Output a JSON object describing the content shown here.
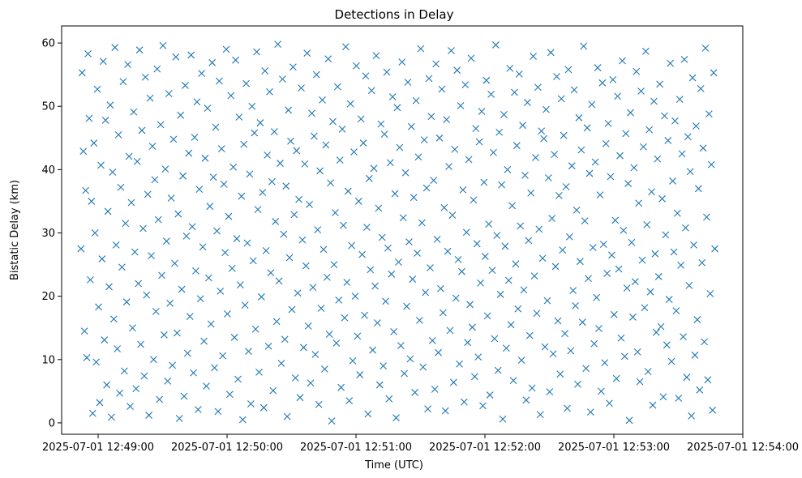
{
  "chart_data": {
    "type": "scatter",
    "title": "Detections in Delay",
    "xlabel": "Time (UTC)",
    "ylabel": "Bistatic Delay (km)",
    "marker": "x",
    "color": "#1f77b4",
    "grid": false,
    "legend": "none",
    "xlim": [
      "2025-07-01 12:48:43",
      "2025-07-01 12:54:00"
    ],
    "ylim": [
      -1.8,
      62.7
    ],
    "x_ticks": [
      "2025-07-01 12:49:00",
      "2025-07-01 12:50:00",
      "2025-07-01 12:51:00",
      "2025-07-01 12:52:00",
      "2025-07-01 12:53:00",
      "2025-07-01 12:54:00"
    ],
    "y_ticks": [
      0,
      10,
      20,
      30,
      40,
      50,
      60
    ],
    "x_start": "2025-07-01 12:48:52",
    "x_end": "2025-07-01 12:53:47",
    "y_values": [
      27.5,
      55.3,
      42.9,
      14.5,
      36.7,
      10.3,
      58.3,
      48.1,
      22.6,
      35.0,
      1.5,
      44.2,
      30.0,
      9.6,
      52.7,
      18.3,
      3.2,
      40.7,
      25.9,
      57.1,
      13.1,
      47.8,
      6.0,
      33.4,
      21.5,
      50.2,
      0.9,
      39.6,
      16.4,
      59.3,
      28.1,
      11.7,
      45.5,
      4.7,
      37.2,
      24.6,
      53.9,
      8.2,
      31.5,
      19.1,
      56.6,
      42.1,
      2.6,
      34.8,
      15.0,
      49.1,
      27.0,
      5.4,
      41.3,
      22.0,
      58.9,
      12.4,
      46.2,
      30.7,
      7.4,
      54.6,
      20.2,
      36.1,
      1.2,
      51.3,
      26.4,
      43.7,
      10.0,
      38.4,
      17.6,
      55.9,
      32.1,
      3.7,
      47.1,
      23.3,
      59.6,
      13.9,
      40.1,
      28.7,
      6.6,
      52.0,
      18.9,
      35.5,
      9.1,
      44.8,
      25.2,
      57.8,
      14.2,
      33.0,
      0.7,
      48.6,
      21.1,
      39.0,
      4.2,
      53.3,
      29.5,
      11.0,
      42.6,
      16.8,
      58.1,
      31.0,
      7.9,
      45.1,
      24.0,
      50.7,
      2.1,
      36.9,
      19.6,
      55.2,
      27.8,
      12.9,
      41.8,
      5.8,
      49.7,
      22.9,
      34.2,
      15.6,
      56.9,
      38.8,
      8.7,
      46.7,
      30.3,
      1.8,
      54.0,
      20.8,
      43.3,
      10.6,
      37.7,
      26.9,
      59.0,
      17.2,
      32.6,
      4.5,
      51.7,
      24.4,
      40.4,
      13.5,
      57.3,
      29.1,
      6.9,
      48.3,
      21.8,
      35.8,
      0.5,
      44.0,
      18.6,
      53.6,
      28.4,
      11.3,
      39.3,
      3.0,
      50.0,
      25.6,
      45.8,
      14.8,
      58.6,
      33.7,
      8.0,
      47.4,
      19.9,
      36.4,
      2.4,
      55.6,
      27.2,
      42.3,
      12.1,
      52.3,
      23.7,
      38.1,
      5.1,
      46.0,
      31.8,
      16.0,
      59.8,
      22.4,
      41.0,
      9.4,
      54.3,
      29.8,
      13.2,
      37.4,
      1.0,
      49.4,
      26.1,
      44.5,
      17.9,
      56.2,
      32.9,
      7.1,
      43.0,
      20.5,
      35.3,
      4.0,
      52.9,
      28.9,
      11.9,
      40.9,
      24.8,
      58.4,
      15.3,
      34.5,
      6.3,
      48.9,
      21.4,
      45.3,
      10.8,
      55.0,
      30.5,
      2.9,
      39.8,
      18.1,
      51.0,
      27.4,
      8.5,
      43.9,
      23.0,
      57.5,
      14.0,
      37.9,
      0.3,
      47.6,
      25.0,
      33.2,
      12.6,
      53.1,
      19.4,
      41.5,
      5.6,
      46.4,
      31.2,
      16.6,
      59.4,
      22.2,
      36.6,
      3.5,
      50.4,
      28.0,
      9.8,
      42.8,
      20.0,
      56.4,
      13.7,
      35.0,
      7.6,
      48.0,
      26.6,
      44.2,
      17.0,
      54.8,
      30.9,
      1.4,
      38.6,
      24.2,
      52.5,
      11.5,
      40.2,
      21.6,
      58.0,
      15.8,
      33.9,
      6.0,
      47.2,
      29.3,
      9.0,
      45.6,
      19.2,
      55.4,
      27.6,
      3.8,
      41.1,
      23.5,
      51.5,
      14.4,
      36.2,
      0.8,
      49.8,
      25.4,
      43.5,
      12.2,
      57.0,
      32.4,
      7.8,
      39.5,
      18.4,
      53.8,
      28.6,
      10.1,
      46.8,
      22.7,
      35.6,
      4.8,
      50.9,
      26.8,
      42.0,
      16.2,
      59.1,
      31.6,
      8.8,
      44.7,
      20.6,
      37.1,
      2.2,
      54.4,
      24.5,
      48.4,
      13.0,
      38.3,
      5.3,
      56.7,
      29.0,
      11.1,
      45.0,
      21.2,
      52.7,
      17.4,
      34.0,
      1.9,
      47.9,
      27.1,
      40.5,
      14.6,
      58.8,
      32.8,
      6.4,
      43.2,
      19.7,
      55.7,
      25.8,
      9.3,
      50.1,
      23.9,
      36.8,
      3.3,
      53.4,
      30.1,
      12.7,
      41.6,
      18.7,
      57.6,
      15.1,
      35.2,
      7.3,
      46.5,
      28.3,
      10.4,
      44.4,
      22.1,
      49.2,
      2.7,
      38.0,
      26.3,
      54.1,
      16.9,
      31.4,
      4.4,
      51.9,
      24.1,
      42.7,
      13.3,
      59.7,
      29.6,
      8.3,
      45.9,
      20.3,
      37.6,
      0.6,
      48.7,
      27.9,
      11.8,
      40.0,
      22.5,
      56.0,
      15.5,
      34.3,
      6.7,
      52.2,
      25.1,
      43.8,
      18.0,
      55.1,
      31.1,
      9.9,
      47.0,
      21.0,
      39.1,
      3.6,
      50.6,
      28.8,
      13.8,
      36.3,
      5.5,
      57.9,
      23.2,
      41.9,
      17.3,
      53.0,
      30.6,
      1.3,
      46.1,
      26.0,
      44.9,
      12.0,
      49.5,
      19.3,
      38.7,
      4.9,
      58.5,
      32.3,
      10.9,
      42.4,
      24.7,
      54.7,
      16.1,
      35.9,
      7.7,
      51.2,
      27.3,
      45.4,
      14.1,
      37.3,
      2.3,
      55.8,
      29.4,
      11.4,
      40.6,
      20.9,
      52.6,
      18.5,
      33.6,
      6.1,
      48.2,
      25.5,
      43.1,
      15.9,
      59.5,
      31.9,
      8.6,
      46.6,
      22.8,
      39.4,
      1.7,
      50.3,
      27.7,
      12.5,
      41.2,
      19.8,
      56.1,
      14.9,
      36.0,
      5.0,
      53.7,
      28.2,
      9.5,
      44.1,
      23.6,
      47.3,
      3.1,
      38.9,
      26.5,
      54.2,
      17.1,
      32.0,
      7.0,
      51.6,
      24.3,
      42.2,
      13.4,
      57.2,
      30.4,
      10.5,
      45.7,
      21.3,
      37.8,
      0.4,
      49.0,
      28.5,
      16.7,
      40.3,
      22.3,
      55.5,
      11.2,
      34.7,
      6.5,
      52.4,
      25.7,
      43.6,
      18.2,
      58.7,
      31.3,
      8.1,
      46.3,
      20.7,
      36.5,
      2.8,
      50.8,
      26.7,
      14.3,
      41.7,
      23.1,
      53.5,
      15.2,
      35.4,
      4.1,
      48.5,
      29.7,
      12.3,
      44.6,
      19.5,
      56.8,
      9.7,
      38.2,
      27.0,
      47.7,
      17.7,
      33.1,
      3.9,
      51.1,
      24.9,
      42.5,
      13.6,
      57.4,
      30.8,
      7.2,
      45.2,
      21.7,
      39.7,
      1.1,
      54.5,
      28.1,
      10.7,
      46.9,
      16.3,
      37.0,
      5.2,
      52.8,
      25.3,
      43.4,
      12.8,
      59.2,
      32.5,
      6.8,
      48.8,
      20.4,
      40.8,
      2.0,
      55.3,
      27.5
    ]
  }
}
